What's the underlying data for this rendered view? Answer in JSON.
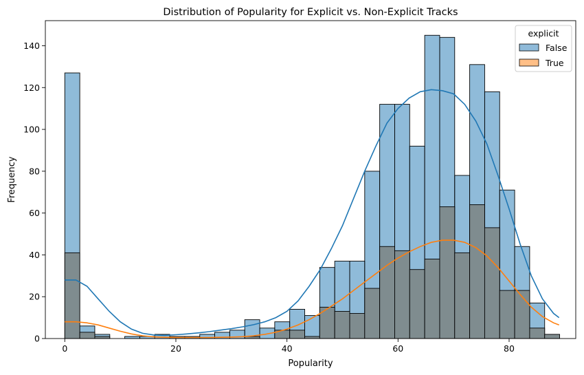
{
  "chart_data": {
    "type": "bar",
    "title": "Distribution of Popularity for Explicit vs. Non-Explicit Tracks",
    "xlabel": "Popularity",
    "ylabel": "Frequency",
    "xlim": [
      -3.5,
      92
    ],
    "ylim": [
      0,
      152
    ],
    "x_ticks": [
      0,
      20,
      40,
      60,
      80
    ],
    "y_ticks": [
      0,
      20,
      40,
      60,
      80,
      100,
      120,
      140
    ],
    "grid": false,
    "legend": {
      "title": "explicit",
      "placement": "top-right"
    },
    "bin_edges": [
      0,
      2.7,
      5.4,
      8.1,
      10.8,
      13.5,
      16.2,
      18.9,
      21.6,
      24.3,
      27.0,
      29.7,
      32.4,
      35.1,
      37.8,
      40.5,
      43.2,
      45.9,
      48.6,
      51.3,
      54.0,
      56.7,
      59.4,
      62.1,
      64.8,
      67.5,
      70.2,
      72.9,
      75.6,
      78.3,
      81.0,
      83.7,
      86.4,
      89.1
    ],
    "series": [
      {
        "name": "False",
        "color": "#1f77b4",
        "values": [
          127,
          6,
          2,
          0,
          1,
          1,
          2,
          1,
          1,
          2,
          3,
          4,
          9,
          5,
          8,
          14,
          11,
          34,
          37,
          37,
          80,
          112,
          112,
          92,
          145,
          144,
          78,
          131,
          118,
          71,
          44,
          17,
          2
        ],
        "kde_x": [
          0,
          2,
          4,
          6,
          8,
          10,
          12,
          14,
          16,
          18,
          20,
          22,
          24,
          26,
          28,
          30,
          32,
          34,
          36,
          38,
          40,
          42,
          44,
          46,
          48,
          50,
          52,
          54,
          56,
          58,
          60,
          62,
          64,
          66,
          68,
          70,
          72,
          74,
          76,
          78,
          80,
          82,
          84,
          86,
          88,
          89
        ],
        "kde_y": [
          28,
          28,
          25,
          19,
          13,
          8,
          4.5,
          2.5,
          1.7,
          1.5,
          1.8,
          2.2,
          2.7,
          3.3,
          4.0,
          4.7,
          5.6,
          6.6,
          8.0,
          10,
          13,
          18,
          25,
          33,
          43,
          54,
          67,
          80,
          92,
          103,
          110,
          115,
          118,
          119,
          118.5,
          117,
          112,
          104,
          93,
          78,
          62,
          45,
          30,
          19,
          12,
          10
        ]
      },
      {
        "name": "True",
        "color": "#ff7f0e",
        "values": [
          41,
          3,
          1,
          0,
          0,
          0,
          0,
          0,
          0,
          0,
          0,
          0,
          1,
          0,
          4,
          4,
          1,
          15,
          13,
          12,
          24,
          44,
          42,
          33,
          38,
          63,
          41,
          64,
          53,
          23,
          23,
          5,
          2
        ],
        "kde_x": [
          0,
          2,
          4,
          6,
          8,
          10,
          12,
          14,
          16,
          18,
          20,
          22,
          24,
          26,
          28,
          30,
          32,
          34,
          36,
          38,
          40,
          42,
          44,
          46,
          48,
          50,
          52,
          54,
          56,
          58,
          60,
          62,
          64,
          66,
          68,
          70,
          72,
          74,
          76,
          78,
          80,
          82,
          84,
          86,
          88,
          89
        ],
        "kde_y": [
          8,
          8,
          7.5,
          6.5,
          5,
          3.5,
          2.2,
          1.3,
          0.8,
          0.6,
          0.5,
          0.5,
          0.5,
          0.5,
          0.6,
          0.7,
          0.9,
          1.3,
          2.0,
          3.0,
          4.5,
          6.5,
          9,
          12,
          15.5,
          19,
          23,
          27,
          31,
          35,
          38.5,
          41.5,
          44,
          46,
          47,
          47,
          46,
          43.5,
          39.5,
          34,
          27.5,
          21,
          15,
          10.5,
          7.5,
          6.5
        ]
      }
    ],
    "overlap_color": "#7f8c8f"
  }
}
